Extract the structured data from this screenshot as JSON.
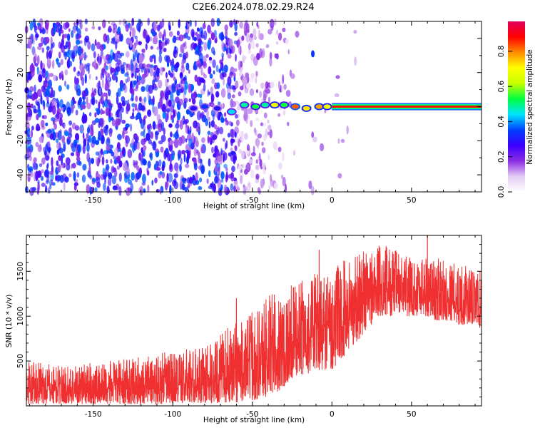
{
  "figure": {
    "title": "C2E6.2024.078.02.29.R24"
  },
  "chart_data": [
    {
      "type": "heatmap",
      "title": "C2E6.2024.078.02.29.R24",
      "xlabel": "Height of straight line (km)",
      "ylabel": "Frequency (Hz)",
      "xlim": [
        -192,
        94
      ],
      "ylim": [
        -50,
        50
      ],
      "x_ticks": [
        -150,
        -100,
        -50,
        0,
        50
      ],
      "y_ticks": [
        -40,
        -20,
        0,
        20,
        40
      ],
      "colorbar": {
        "label": "Normalized spectral amplitude",
        "range": [
          0.0,
          0.97
        ],
        "ticks": [
          "0.0",
          "0.2",
          "0.4",
          "0.6",
          "0.8"
        ],
        "tick_values": [
          0.0,
          0.2,
          0.4,
          0.6,
          0.8
        ],
        "colormap": [
          "#ffffff",
          "#e4ccf4",
          "#8a2be2",
          "#3a00ff",
          "#0040ff",
          "#00e5ff",
          "#00ff40",
          "#c8ff00",
          "#ffff00",
          "#ff8c00",
          "#ff0000",
          "#e0005a"
        ]
      },
      "features": {
        "noise_field_x_range": [
          -192,
          -60
        ],
        "noise_sparse_x_range": [
          -60,
          -20
        ],
        "signal_line_frequency_hz": 0,
        "signal_line_x_range": [
          0,
          94
        ],
        "signal_line_amplitude": 0.9,
        "signal_clumps": [
          {
            "x": -87,
            "y": -1,
            "amp": 0.3
          },
          {
            "x": -80,
            "y": 0,
            "amp": 0.35
          },
          {
            "x": -72,
            "y": -1,
            "amp": 0.3
          },
          {
            "x": -63,
            "y": -3,
            "amp": 0.45
          },
          {
            "x": -55,
            "y": 1,
            "amp": 0.5
          },
          {
            "x": -48,
            "y": 0,
            "amp": 0.55
          },
          {
            "x": -42,
            "y": 1,
            "amp": 0.5
          },
          {
            "x": -36,
            "y": 1,
            "amp": 0.7
          },
          {
            "x": -30,
            "y": 1,
            "amp": 0.55
          },
          {
            "x": -23,
            "y": 0,
            "amp": 0.85
          },
          {
            "x": -16,
            "y": -1,
            "amp": 0.75
          },
          {
            "x": -8,
            "y": 0,
            "amp": 0.8
          },
          {
            "x": -3,
            "y": 0,
            "amp": 0.7
          }
        ],
        "isolated_blob": {
          "x": -12,
          "y": 31,
          "amp": 0.35
        }
      }
    },
    {
      "type": "line",
      "xlabel": "Height of straight line (km)",
      "ylabel": "SNR (10 * v/v)",
      "xlim": [
        -192,
        94
      ],
      "ylim": [
        0,
        1900
      ],
      "x_ticks": [
        -150,
        -100,
        -50,
        0,
        50
      ],
      "y_ticks": [
        500,
        1000,
        1500
      ],
      "color": "#f03030",
      "series": [
        {
          "x": [
            -192,
            -170,
            -150,
            -130,
            -110,
            -90,
            -75,
            -65,
            -60,
            -55,
            -50,
            -45,
            -40,
            -35,
            -30,
            -25,
            -20,
            -15,
            -10,
            -5,
            0,
            5,
            10,
            15,
            20,
            25,
            30,
            35,
            40,
            45,
            50,
            55,
            60,
            65,
            70,
            75,
            80,
            85,
            90,
            94
          ],
          "envelope_low": [
            20,
            20,
            20,
            20,
            20,
            30,
            30,
            40,
            40,
            60,
            60,
            80,
            100,
            150,
            200,
            300,
            350,
            350,
            400,
            400,
            400,
            500,
            600,
            700,
            800,
            900,
            1000,
            1000,
            1000,
            1000,
            1000,
            1000,
            1000,
            950,
            950,
            950,
            900,
            900,
            900,
            850
          ],
          "envelope_high": [
            500,
            450,
            480,
            520,
            580,
            640,
            700,
            880,
            1000,
            900,
            1100,
            1150,
            1300,
            1250,
            1300,
            1350,
            1400,
            1400,
            1500,
            1500,
            1500,
            1600,
            1700,
            1700,
            1800,
            1800,
            1800,
            1800,
            1750,
            1700,
            1650,
            1700,
            1700,
            1650,
            1650,
            1600,
            1600,
            1550,
            1500,
            1500
          ],
          "spikes": [
            {
              "x": -72,
              "y": 620
            },
            {
              "x": -60,
              "y": 1200
            },
            {
              "x": -8,
              "y": 1740
            },
            {
              "x": 60,
              "y": 1900
            }
          ]
        }
      ]
    }
  ]
}
